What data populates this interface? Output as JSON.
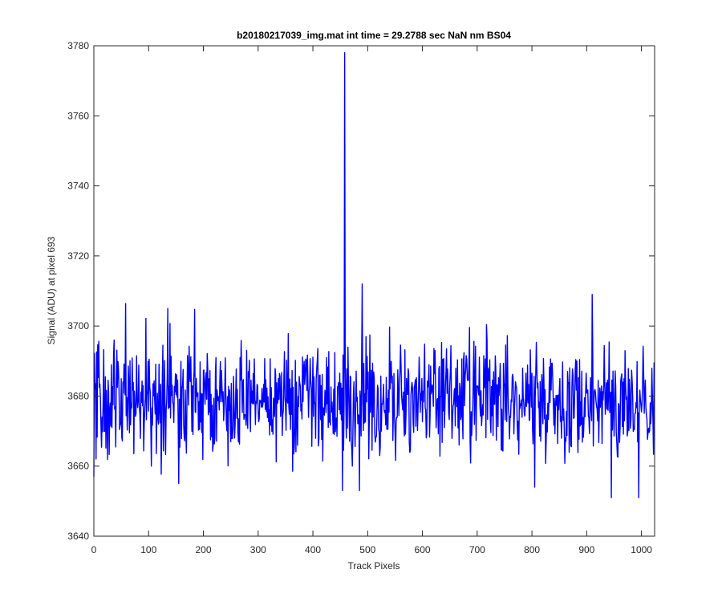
{
  "chart_data": {
    "type": "line",
    "title": "b20180217039_img.mat int time = 29.2788 sec  NaN nm BS04",
    "xlabel": "Track Pixels",
    "ylabel": "Signal (ADU) at pixel 693",
    "xlim": [
      0,
      1024
    ],
    "ylim": [
      3640,
      3780
    ],
    "xticks": [
      0,
      100,
      200,
      300,
      400,
      500,
      600,
      700,
      800,
      900,
      1000
    ],
    "yticks": [
      3640,
      3660,
      3680,
      3700,
      3720,
      3740,
      3760,
      3780
    ],
    "grid": false,
    "legend": "none",
    "line_color": "#0000ff",
    "noise_level": {
      "mean": 3679,
      "min": 3651,
      "max": 3709
    },
    "notable_points": [
      {
        "x": 0,
        "y": 3657
      },
      {
        "x": 135,
        "y": 3705
      },
      {
        "x": 155,
        "y": 3655
      },
      {
        "x": 458,
        "y": 3778
      },
      {
        "x": 461,
        "y": 3668
      },
      {
        "x": 472,
        "y": 3660
      },
      {
        "x": 485,
        "y": 3653
      },
      {
        "x": 490,
        "y": 3712
      },
      {
        "x": 805,
        "y": 3654
      },
      {
        "x": 910,
        "y": 3709
      },
      {
        "x": 945,
        "y": 3651
      },
      {
        "x": 995,
        "y": 3651
      }
    ]
  }
}
